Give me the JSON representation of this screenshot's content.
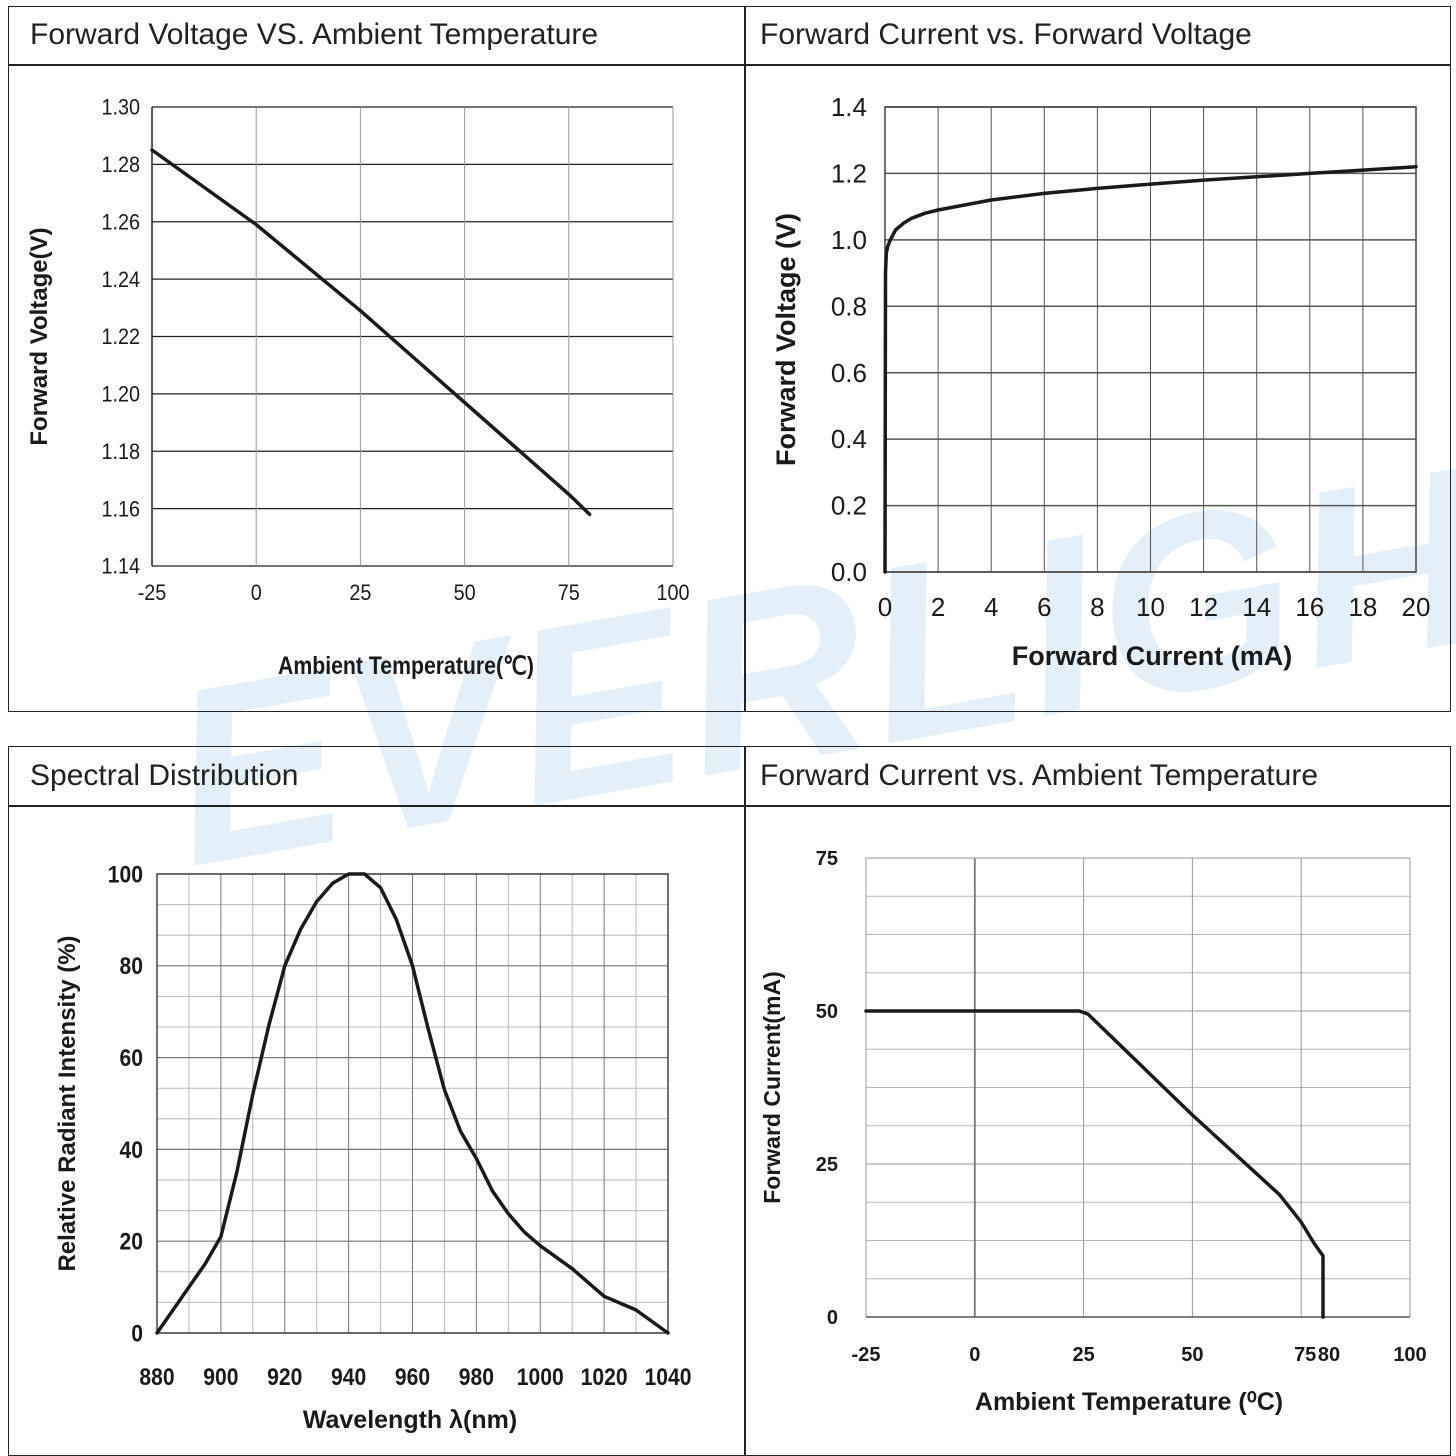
{
  "watermark": "EVERLIGHT",
  "panels": [
    {
      "title": "Forward Voltage VS. Ambient Temperature"
    },
    {
      "title": "Forward Current vs. Forward Voltage"
    },
    {
      "title": "Spectral Distribution"
    },
    {
      "title": "Forward Current vs. Ambient Temperature"
    }
  ],
  "chart_data": [
    {
      "type": "line",
      "title": "Forward Voltage VS. Ambient Temperature",
      "xlabel": "Ambient Temperature(℃)",
      "ylabel": "Forward Voltage(V)",
      "xlim": [
        -25,
        100
      ],
      "ylim": [
        1.14,
        1.3
      ],
      "xticks": [
        -25,
        0,
        25,
        50,
        75,
        100
      ],
      "xtick_labels": [
        "-25",
        "0",
        "25",
        "50",
        "75",
        "100"
      ],
      "yticks": [
        1.14,
        1.16,
        1.18,
        1.2,
        1.22,
        1.24,
        1.26,
        1.28,
        1.3
      ],
      "ytick_labels": [
        "1.14",
        "1.16",
        "1.18",
        "1.20",
        "1.22",
        "1.24",
        "1.26",
        "1.28",
        "1.30"
      ],
      "grid": true,
      "series": [
        {
          "x": [
            -25,
            0,
            25,
            50,
            75,
            80
          ],
          "y": [
            1.285,
            1.259,
            1.229,
            1.197,
            1.165,
            1.158
          ]
        }
      ]
    },
    {
      "type": "line",
      "title": "Forward Current vs. Forward Voltage",
      "xlabel": "Forward Current (mA)",
      "ylabel": "Forward Voltage (V)",
      "xlim": [
        0,
        20
      ],
      "ylim": [
        0,
        1.4
      ],
      "xticks": [
        0,
        2,
        4,
        6,
        8,
        10,
        12,
        14,
        16,
        18,
        20
      ],
      "xtick_labels": [
        "0",
        "2",
        "4",
        "6",
        "8",
        "10",
        "12",
        "14",
        "16",
        "18",
        "20"
      ],
      "yticks": [
        0,
        0.2,
        0.4,
        0.6,
        0.8,
        1.0,
        1.2,
        1.4
      ],
      "ytick_labels": [
        "0.0",
        "0.2",
        "0.4",
        "0.6",
        "0.8",
        "1.0",
        "1.2",
        "1.4"
      ],
      "grid": true,
      "series": [
        {
          "x": [
            0,
            0.02,
            0.05,
            0.1,
            0.2,
            0.4,
            0.7,
            1,
            1.5,
            2,
            3,
            4,
            6,
            8,
            10,
            12,
            14,
            16,
            18,
            20
          ],
          "y": [
            0,
            0.9,
            0.96,
            0.98,
            1.0,
            1.03,
            1.05,
            1.065,
            1.08,
            1.09,
            1.105,
            1.12,
            1.14,
            1.155,
            1.168,
            1.18,
            1.19,
            1.2,
            1.21,
            1.22
          ]
        }
      ]
    },
    {
      "type": "line",
      "title": "Spectral Distribution",
      "xlabel": "Wavelength λ(nm)",
      "ylabel": "Relative Radiant Intensity (%)",
      "xlim": [
        880,
        1040
      ],
      "ylim": [
        0,
        100
      ],
      "xticks": [
        880,
        900,
        920,
        940,
        960,
        980,
        1000,
        1020,
        1040
      ],
      "xtick_labels": [
        "880",
        "900",
        "920",
        "940",
        "960",
        "980",
        "1000",
        "1020",
        "1040"
      ],
      "yticks": [
        0,
        20,
        40,
        60,
        80,
        100
      ],
      "ytick_labels": [
        "0",
        "20",
        "40",
        "60",
        "80",
        "100"
      ],
      "grid": true,
      "series": [
        {
          "x": [
            880,
            885,
            890,
            895,
            900,
            905,
            910,
            915,
            920,
            925,
            930,
            935,
            940,
            945,
            950,
            955,
            960,
            965,
            970,
            975,
            980,
            985,
            990,
            995,
            1000,
            1010,
            1020,
            1030,
            1040
          ],
          "y": [
            0,
            5,
            10,
            15,
            21,
            35,
            52,
            67,
            80,
            88,
            94,
            98,
            100,
            100,
            97,
            90,
            80,
            66,
            53,
            44,
            38,
            31,
            26,
            22,
            19,
            14,
            8,
            5,
            0
          ]
        }
      ]
    },
    {
      "type": "line",
      "title": "Forward Current vs. Ambient Temperature",
      "xlabel": "Ambient Temperature (⁰C)",
      "ylabel": "Forward Current(mA)",
      "xlim": [
        -25,
        100
      ],
      "ylim": [
        0,
        75
      ],
      "xticks": [
        -25,
        0,
        25,
        50,
        75,
        80,
        100
      ],
      "xtick_labels": [
        "-25",
        "0",
        "25",
        "50",
        "75",
        "80",
        "100"
      ],
      "yticks": [
        0,
        25,
        50,
        75
      ],
      "ytick_labels": [
        "0",
        "25",
        "50",
        "75"
      ],
      "grid": true,
      "series": [
        {
          "x": [
            -25,
            24,
            26,
            50,
            70,
            75,
            78,
            80,
            80
          ],
          "y": [
            50,
            50,
            49.5,
            33,
            20,
            15.5,
            12,
            10,
            0
          ]
        }
      ]
    }
  ]
}
